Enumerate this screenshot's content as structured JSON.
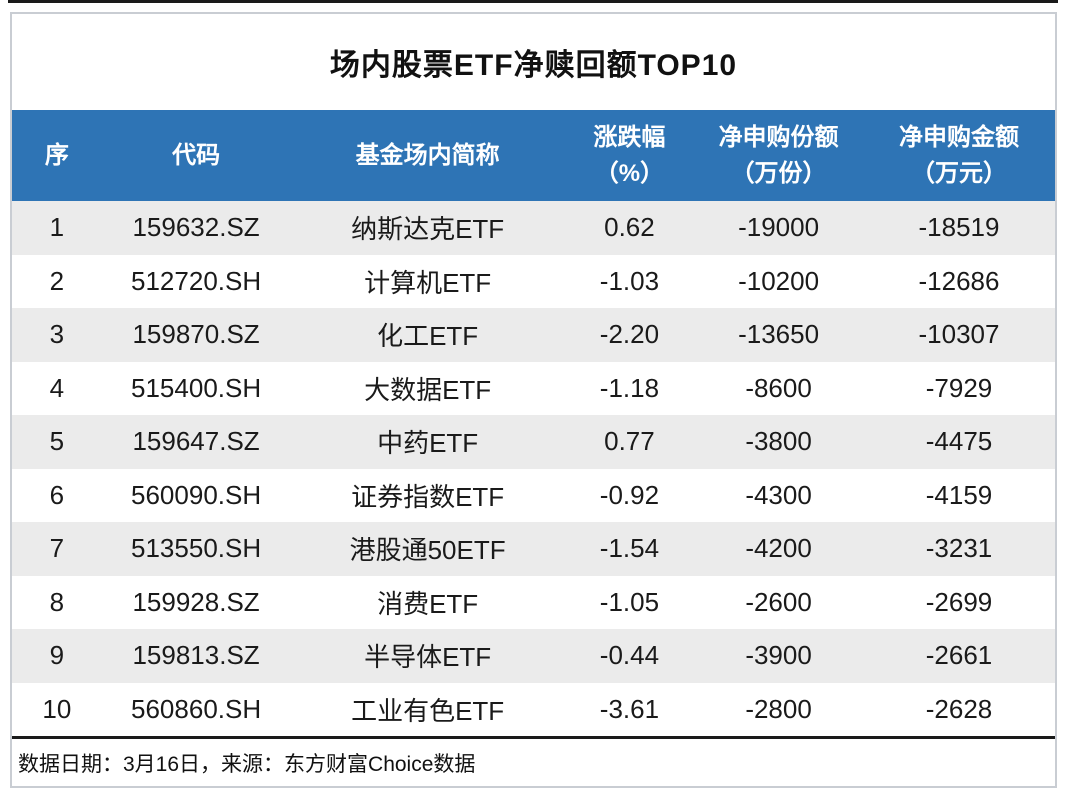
{
  "colors": {
    "header_bg": "#2E74B5",
    "header_text": "#FFFFFF",
    "stripe_bg": "#EBEBEB",
    "card_border": "#C9CDD3",
    "rule_dark": "#1A1A1A"
  },
  "chart_data": {
    "type": "table",
    "title": "场内股票ETF净赎回额TOP10",
    "columns": [
      {
        "key": "rank",
        "label": "序",
        "unit": ""
      },
      {
        "key": "code",
        "label": "代码",
        "unit": ""
      },
      {
        "key": "name",
        "label": "基金场内简称",
        "unit": ""
      },
      {
        "key": "change_pct",
        "label": "涨跌幅",
        "unit": "（%）"
      },
      {
        "key": "net_subscription_shares",
        "label": "净申购份额",
        "unit": "（万份）"
      },
      {
        "key": "net_subscription_amount",
        "label": "净申购金额",
        "unit": "（万元）"
      }
    ],
    "rows": [
      [
        "1",
        "159632.SZ",
        "纳斯达克ETF",
        "0.62",
        "-19000",
        "-18519"
      ],
      [
        "2",
        "512720.SH",
        "计算机ETF",
        "-1.03",
        "-10200",
        "-12686"
      ],
      [
        "3",
        "159870.SZ",
        "化工ETF",
        "-2.20",
        "-13650",
        "-10307"
      ],
      [
        "4",
        "515400.SH",
        "大数据ETF",
        "-1.18",
        "-8600",
        "-7929"
      ],
      [
        "5",
        "159647.SZ",
        "中药ETF",
        "0.77",
        "-3800",
        "-4475"
      ],
      [
        "6",
        "560090.SH",
        "证券指数ETF",
        "-0.92",
        "-4300",
        "-4159"
      ],
      [
        "7",
        "513550.SH",
        "港股通50ETF",
        "-1.54",
        "-4200",
        "-3231"
      ],
      [
        "8",
        "159928.SZ",
        "消费ETF",
        "-1.05",
        "-2600",
        "-2699"
      ],
      [
        "9",
        "159813.SZ",
        "半导体ETF",
        "-0.44",
        "-3900",
        "-2661"
      ],
      [
        "10",
        "560860.SH",
        "工业有色ETF",
        "-3.61",
        "-2800",
        "-2628"
      ]
    ],
    "footnote": "数据日期：3月16日，来源：东方财富Choice数据",
    "layout": {
      "stripe_rows": "odd",
      "alignment": "center",
      "header_lines": 2
    }
  }
}
